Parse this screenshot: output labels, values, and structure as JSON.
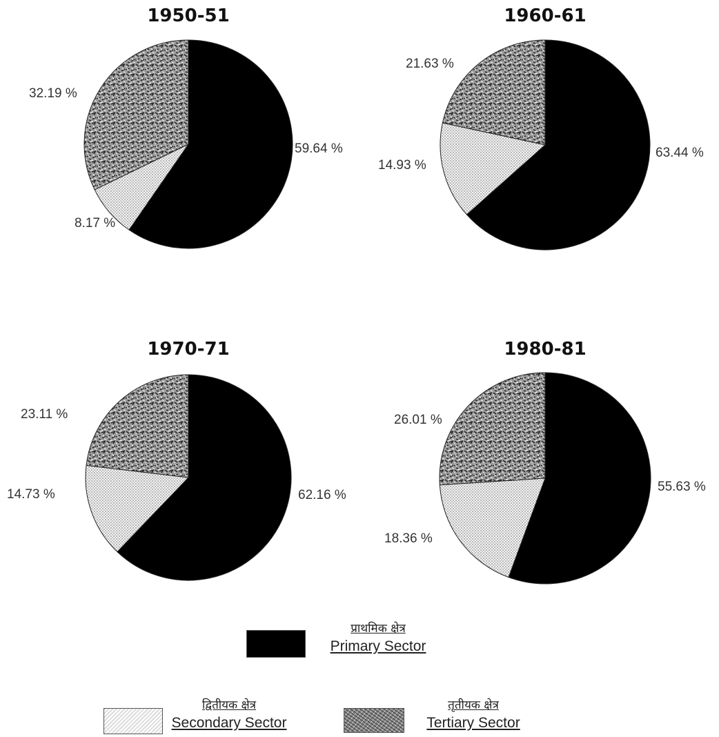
{
  "chart_data": [
    {
      "type": "pie",
      "title": "1950-51",
      "slices": [
        {
          "category": "Primary Sector",
          "value": 59.64,
          "label": "59.64 %"
        },
        {
          "category": "Secondary Sector",
          "value": 8.17,
          "label": "8.17  %"
        },
        {
          "category": "Tertiary Sector",
          "value": 32.19,
          "label": "32.19 %"
        }
      ]
    },
    {
      "type": "pie",
      "title": "1960-61",
      "slices": [
        {
          "category": "Primary Sector",
          "value": 63.44,
          "label": "63.44 %"
        },
        {
          "category": "Secondary Sector",
          "value": 14.93,
          "label": "14.93 %"
        },
        {
          "category": "Tertiary Sector",
          "value": 21.63,
          "label": "21.63 %"
        }
      ]
    },
    {
      "type": "pie",
      "title": "1970-71",
      "slices": [
        {
          "category": "Primary Sector",
          "value": 62.16,
          "label": "62.16 %"
        },
        {
          "category": "Secondary Sector",
          "value": 14.73,
          "label": "14.73 %"
        },
        {
          "category": "Tertiary Sector",
          "value": 23.11,
          "label": "23.11 %"
        }
      ]
    },
    {
      "type": "pie",
      "title": "1980-81",
      "slices": [
        {
          "category": "Primary Sector",
          "value": 55.63,
          "label": "55.63 %"
        },
        {
          "category": "Secondary Sector",
          "value": 18.36,
          "label": "18.36 %"
        },
        {
          "category": "Tertiary Sector",
          "value": 26.01,
          "label": "26.01 %"
        }
      ]
    }
  ],
  "legend": {
    "primary": {
      "hindi": "प्राथमिक क्षेत्र",
      "english": "Primary Sector",
      "fill": "solid-black"
    },
    "secondary": {
      "hindi": "द्वितीयक क्षेत्र",
      "english": "Secondary Sector",
      "fill": "fine-dot-pattern"
    },
    "tertiary": {
      "hindi": "तृतीयक क्षेत्र",
      "english": "Tertiary Sector",
      "fill": "coarse-texture-pattern"
    }
  },
  "colors": {
    "primary": "#000000",
    "outline": "#222222"
  }
}
